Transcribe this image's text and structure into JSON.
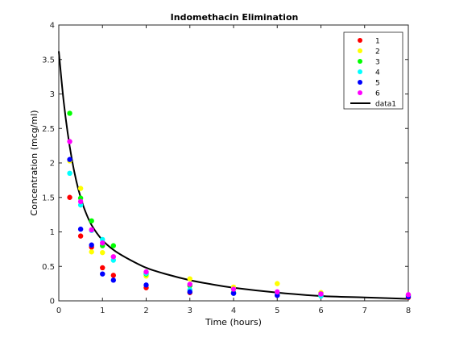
{
  "chart_data": {
    "type": "scatter",
    "title": "Indomethacin Elimination",
    "xlabel": "Time (hours)",
    "ylabel": "Concentration (mcg/ml)",
    "xlim": [
      0,
      8
    ],
    "ylim": [
      0,
      4
    ],
    "x_ticks": [
      "0",
      "1",
      "2",
      "3",
      "4",
      "5",
      "6",
      "7",
      "8"
    ],
    "y_ticks": [
      "0",
      "0.5",
      "1",
      "1.5",
      "2",
      "2.5",
      "3",
      "3.5",
      "4"
    ],
    "x": [
      0.25,
      0.5,
      0.75,
      1,
      1.25,
      2,
      3,
      4,
      5,
      6,
      8
    ],
    "grid": false,
    "legend_position": "top-right",
    "series": [
      {
        "name": "1",
        "color": "#ff0000",
        "y": [
          1.5,
          0.94,
          0.78,
          0.48,
          0.37,
          0.19,
          0.12,
          0.11,
          0.08,
          0.07,
          0.05
        ]
      },
      {
        "name": "2",
        "color": "#ffff00",
        "y": [
          2.03,
          1.63,
          0.71,
          0.7,
          0.64,
          0.36,
          0.32,
          0.2,
          0.25,
          0.12,
          0.08
        ]
      },
      {
        "name": "3",
        "color": "#00ff00",
        "y": [
          2.72,
          1.49,
          1.16,
          0.8,
          0.8,
          0.39,
          0.22,
          0.12,
          0.11,
          0.08,
          0.08
        ]
      },
      {
        "name": "4",
        "color": "#00ffff",
        "y": [
          1.85,
          1.39,
          1.02,
          0.89,
          0.59,
          0.4,
          0.16,
          0.11,
          0.1,
          0.07,
          0.07
        ]
      },
      {
        "name": "5",
        "color": "#0000ff",
        "y": [
          2.05,
          1.04,
          0.81,
          0.39,
          0.3,
          0.23,
          0.13,
          0.11,
          0.08,
          0.1,
          0.06
        ]
      },
      {
        "name": "6",
        "color": "#ff00ff",
        "y": [
          2.31,
          1.44,
          1.03,
          0.84,
          0.64,
          0.42,
          0.24,
          0.17,
          0.13,
          0.1,
          0.09
        ]
      }
    ],
    "fit": {
      "name": "data1",
      "color": "#000000",
      "x": [
        0,
        0.1,
        0.2,
        0.3,
        0.4,
        0.5,
        0.6,
        0.75,
        1,
        1.25,
        1.5,
        2,
        2.5,
        3,
        3.5,
        4,
        5,
        6,
        7,
        8
      ],
      "y": [
        3.62,
        2.96,
        2.45,
        2.05,
        1.74,
        1.5,
        1.31,
        1.1,
        0.88,
        0.74,
        0.64,
        0.48,
        0.38,
        0.3,
        0.24,
        0.19,
        0.12,
        0.07,
        0.05,
        0.03
      ]
    }
  }
}
